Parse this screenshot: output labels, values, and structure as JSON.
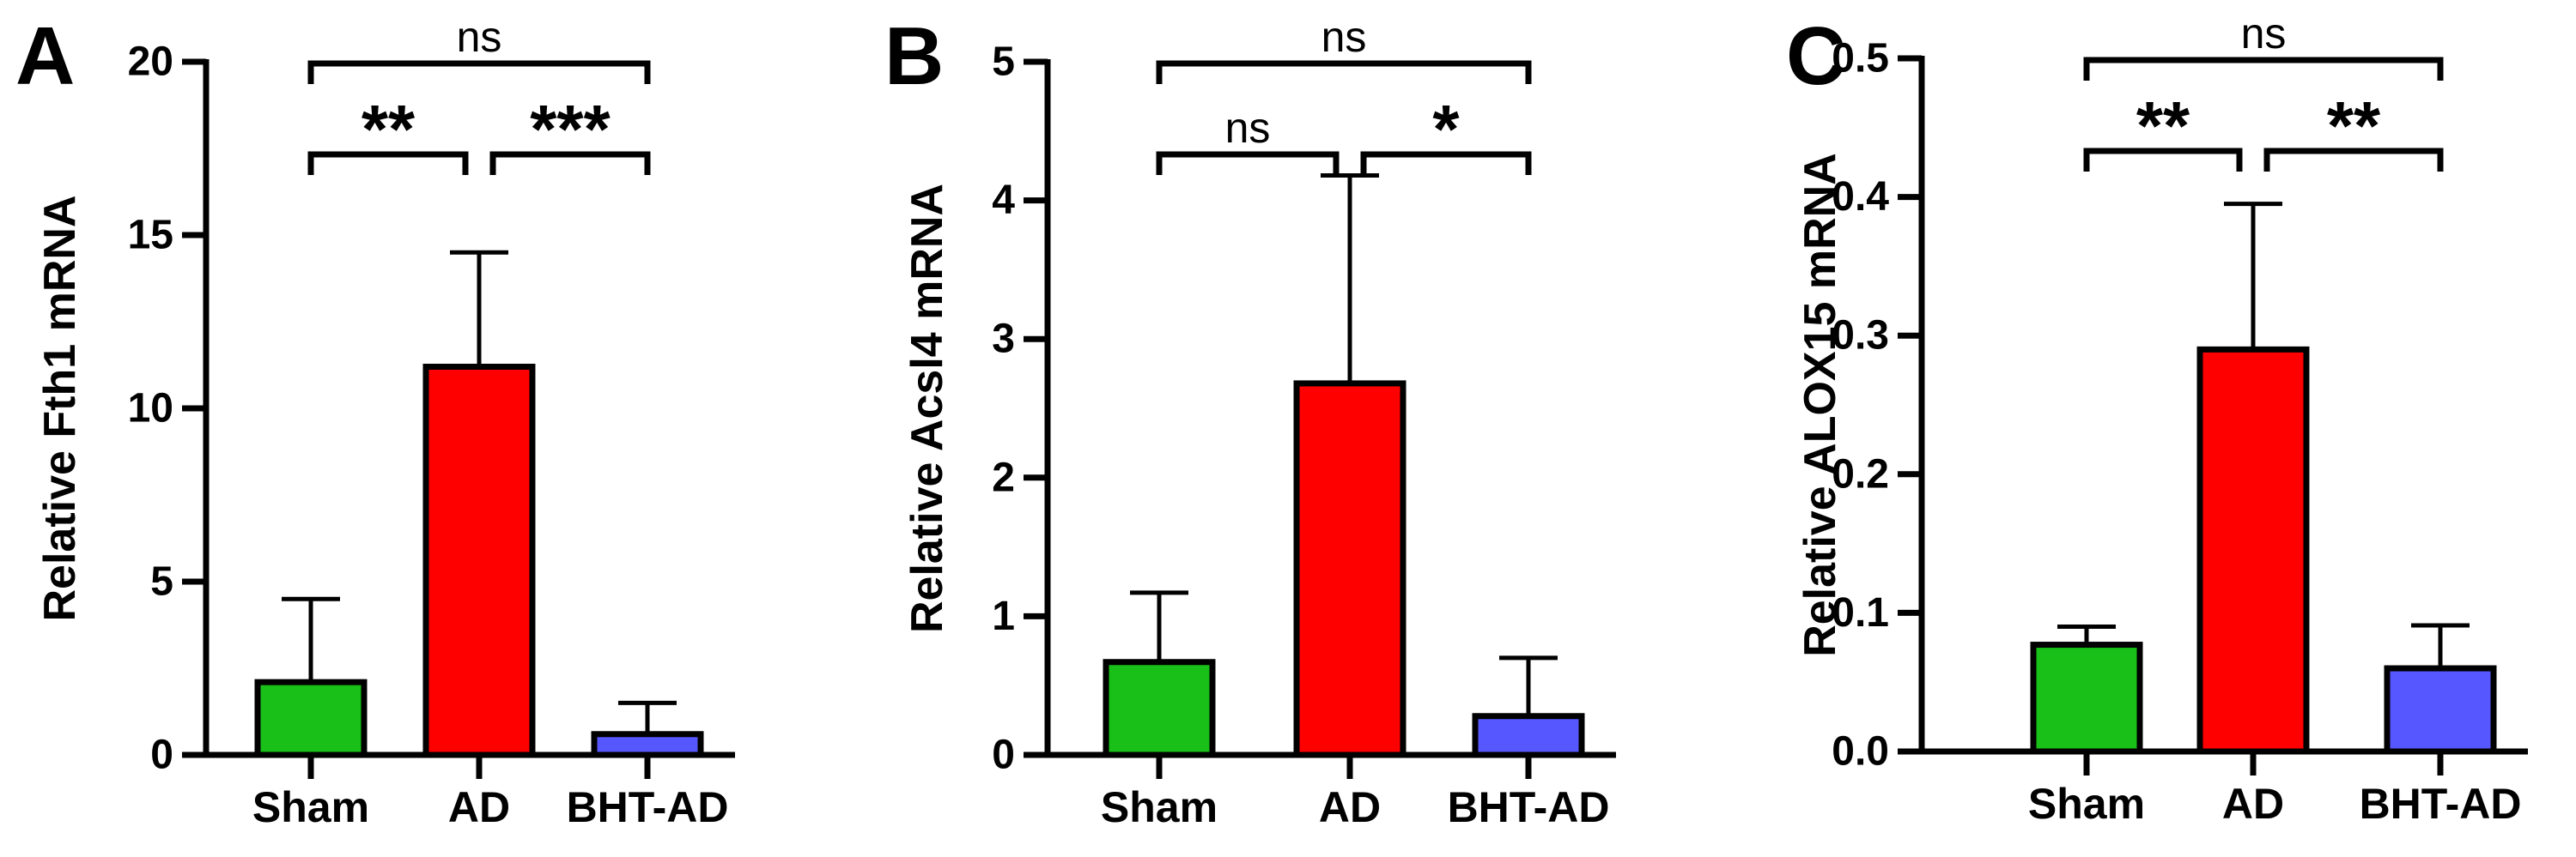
{
  "chart_data": [
    {
      "panel": "A",
      "type": "bar",
      "ylabel": "Relative Fth1 mRNA",
      "ylim": [
        0,
        20
      ],
      "yticks": [
        "0",
        "5",
        "10",
        "15",
        "20"
      ],
      "categories": [
        "Sham",
        "AD",
        "BHT-AD"
      ],
      "values": [
        2.1,
        11.2,
        0.6
      ],
      "errors": [
        2.4,
        3.3,
        0.9
      ],
      "colors": [
        "#18c018",
        "#ff0000",
        "#5757ff"
      ],
      "comparisons": [
        {
          "from": 0,
          "to": 1,
          "label": "**"
        },
        {
          "from": 1,
          "to": 2,
          "label": "***"
        },
        {
          "from": 0,
          "to": 2,
          "label": "ns"
        }
      ]
    },
    {
      "panel": "B",
      "type": "bar",
      "ylabel": "Relative Acsl4 mRNA",
      "ylim": [
        0,
        5
      ],
      "yticks": [
        "0",
        "1",
        "2",
        "3",
        "4",
        "5"
      ],
      "categories": [
        "Sham",
        "AD",
        "BHT-AD"
      ],
      "values": [
        0.67,
        2.68,
        0.28
      ],
      "errors": [
        0.5,
        1.5,
        0.42
      ],
      "colors": [
        "#18c018",
        "#ff0000",
        "#5757ff"
      ],
      "comparisons": [
        {
          "from": 0,
          "to": 1,
          "label": "ns"
        },
        {
          "from": 1,
          "to": 2,
          "label": "*"
        },
        {
          "from": 0,
          "to": 2,
          "label": "ns"
        }
      ]
    },
    {
      "panel": "C",
      "type": "bar",
      "ylabel": "Relative ALOX15 mRNA",
      "ylim": [
        0,
        0.5
      ],
      "yticks": [
        "0.0",
        "0.1",
        "0.2",
        "0.3",
        "0.4",
        "0.5"
      ],
      "categories": [
        "Sham",
        "AD",
        "BHT-AD"
      ],
      "values": [
        0.077,
        0.29,
        0.06
      ],
      "errors": [
        0.013,
        0.105,
        0.031
      ],
      "colors": [
        "#18c018",
        "#ff0000",
        "#5757ff"
      ],
      "comparisons": [
        {
          "from": 0,
          "to": 1,
          "label": "**"
        },
        {
          "from": 1,
          "to": 2,
          "label": "**"
        },
        {
          "from": 0,
          "to": 2,
          "label": "ns"
        }
      ]
    }
  ]
}
